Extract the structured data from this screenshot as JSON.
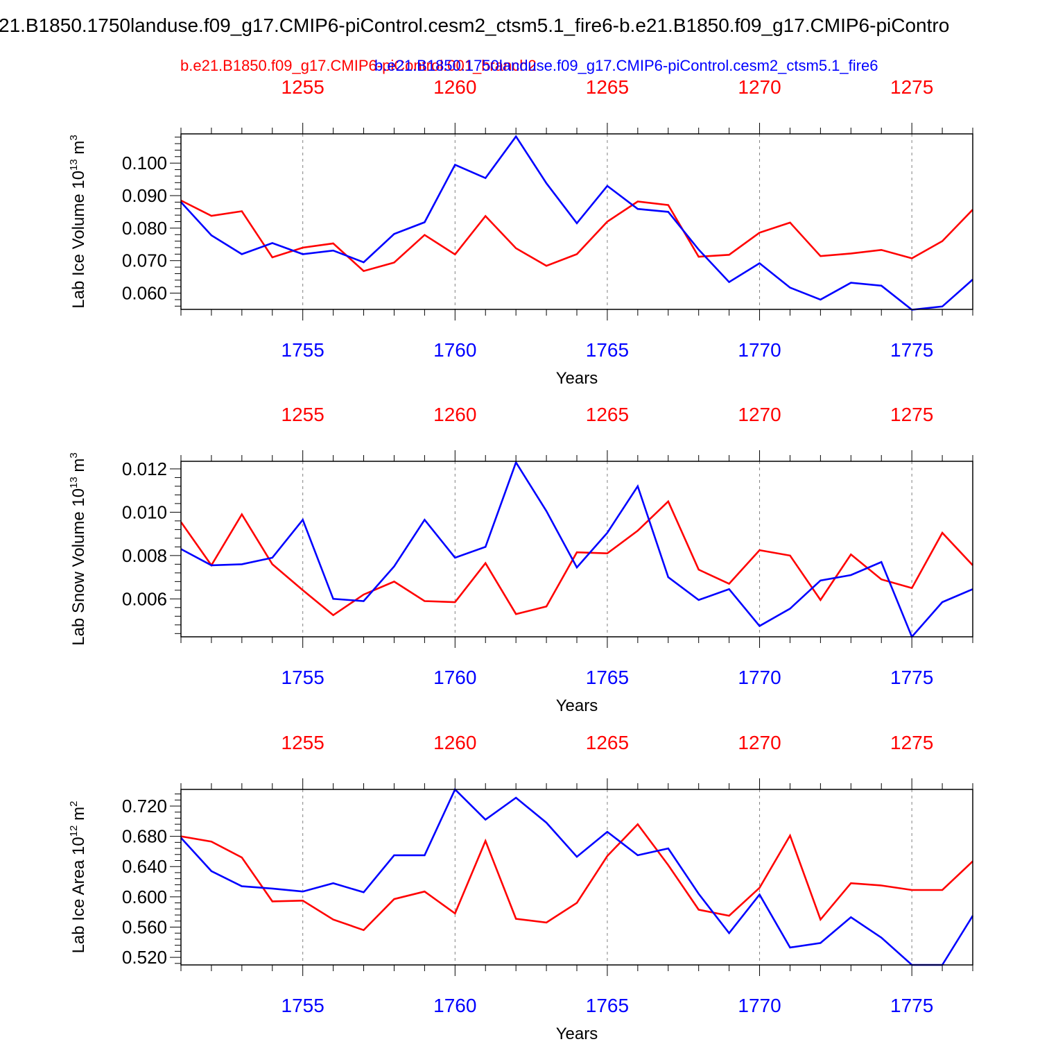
{
  "title": "21.B1850.1750landuse.f09_g17.CMIP6-piControl.cesm2_ctsm5.1_fire6-b.e21.B1850.f09_g17.CMIP6-piContro",
  "legend": {
    "red_label": "b.e21.B1850.f09_g17.CMIP6-piControl.001_branch2",
    "blue_label": "b.e21.B1850.1750landuse.f09_g17.CMIP6-piControl.cesm2_ctsm5.1_fire6"
  },
  "colors": {
    "red": "#ff0000",
    "blue": "#0000ff",
    "frame": "#000000",
    "grid": "#808080"
  },
  "chart_data": [
    {
      "type": "line",
      "ylabel": "Lab Ice Volume 10",
      "ylabel_exp": "13",
      "ylabel_unit": " m",
      "ylabel_unit_exp": "3",
      "xlabel": "Years",
      "ylim": [
        0.055,
        0.109
      ],
      "xlim": [
        1751,
        1777
      ],
      "yticks": [
        0.06,
        0.07,
        0.08,
        0.09,
        0.1
      ],
      "ytick_labels": [
        "0.060",
        "0.070",
        "0.080",
        "0.090",
        "0.100"
      ],
      "bottom_ticks": [
        1755,
        1760,
        1765,
        1770,
        1775
      ],
      "bottom_tick_labels": [
        "1755",
        "1760",
        "1765",
        "1770",
        "1775"
      ],
      "top_tick_labels": [
        "1255",
        "1260",
        "1265",
        "1270",
        "1275"
      ],
      "x": [
        1751,
        1752,
        1753,
        1754,
        1755,
        1756,
        1757,
        1758,
        1759,
        1760,
        1761,
        1762,
        1763,
        1764,
        1765,
        1766,
        1767,
        1768,
        1769,
        1770,
        1771,
        1772,
        1773,
        1774,
        1775,
        1776,
        1777
      ],
      "series": [
        {
          "color": "red",
          "values": [
            0.0885,
            0.0838,
            0.0852,
            0.071,
            0.074,
            0.0753,
            0.0668,
            0.0694,
            0.0779,
            0.0719,
            0.0837,
            0.0738,
            0.0684,
            0.072,
            0.082,
            0.0882,
            0.0871,
            0.0712,
            0.0718,
            0.0786,
            0.0817,
            0.0714,
            0.0722,
            0.0733,
            0.0707,
            0.076,
            0.0857
          ]
        },
        {
          "color": "blue",
          "values": [
            0.088,
            0.0778,
            0.072,
            0.0754,
            0.072,
            0.0731,
            0.0695,
            0.0782,
            0.0818,
            0.0995,
            0.0954,
            0.1082,
            0.0938,
            0.0815,
            0.093,
            0.0859,
            0.085,
            0.0734,
            0.0634,
            0.0692,
            0.0617,
            0.058,
            0.0632,
            0.0623,
            0.0549,
            0.0559,
            0.0642
          ]
        }
      ]
    },
    {
      "type": "line",
      "ylabel": "Lab Snow Volume 10",
      "ylabel_exp": "13",
      "ylabel_unit": " m",
      "ylabel_unit_exp": "3",
      "xlabel": "Years",
      "ylim": [
        0.00425,
        0.01235
      ],
      "xlim": [
        1751,
        1777
      ],
      "yticks": [
        0.006,
        0.008,
        0.01,
        0.012
      ],
      "ytick_labels": [
        "0.006",
        "0.008",
        "0.010",
        "0.012"
      ],
      "bottom_ticks": [
        1755,
        1760,
        1765,
        1770,
        1775
      ],
      "bottom_tick_labels": [
        "1755",
        "1760",
        "1765",
        "1770",
        "1775"
      ],
      "top_tick_labels": [
        "1255",
        "1260",
        "1265",
        "1270",
        "1275"
      ],
      "x": [
        1751,
        1752,
        1753,
        1754,
        1755,
        1756,
        1757,
        1758,
        1759,
        1760,
        1761,
        1762,
        1763,
        1764,
        1765,
        1766,
        1767,
        1768,
        1769,
        1770,
        1771,
        1772,
        1773,
        1774,
        1775,
        1776,
        1777
      ],
      "series": [
        {
          "color": "red",
          "values": [
            0.00955,
            0.00755,
            0.0099,
            0.0076,
            0.0064,
            0.00525,
            0.0062,
            0.0068,
            0.0059,
            0.00585,
            0.00765,
            0.0053,
            0.00565,
            0.00815,
            0.0081,
            0.00915,
            0.0105,
            0.00735,
            0.0067,
            0.00825,
            0.008,
            0.00595,
            0.00805,
            0.0069,
            0.0065,
            0.00905,
            0.00755
          ]
        },
        {
          "color": "blue",
          "values": [
            0.0083,
            0.00755,
            0.0076,
            0.0079,
            0.00965,
            0.006,
            0.0059,
            0.0075,
            0.00965,
            0.0079,
            0.0084,
            0.0123,
            0.01005,
            0.00745,
            0.00905,
            0.0112,
            0.007,
            0.00595,
            0.00645,
            0.00475,
            0.00555,
            0.00685,
            0.0071,
            0.0077,
            0.00425,
            0.00585,
            0.00645
          ]
        }
      ]
    },
    {
      "type": "line",
      "ylabel": "Lab Ice Area 10",
      "ylabel_exp": "12",
      "ylabel_unit": " m",
      "ylabel_unit_exp": "2",
      "xlabel": "Years",
      "ylim": [
        0.51,
        0.742
      ],
      "xlim": [
        1751,
        1777
      ],
      "yticks": [
        0.52,
        0.56,
        0.6,
        0.64,
        0.68,
        0.72
      ],
      "ytick_labels": [
        "0.520",
        "0.560",
        "0.600",
        "0.640",
        "0.680",
        "0.720"
      ],
      "bottom_ticks": [
        1755,
        1760,
        1765,
        1770,
        1775
      ],
      "bottom_tick_labels": [
        "1755",
        "1760",
        "1765",
        "1770",
        "1775"
      ],
      "top_tick_labels": [
        "1255",
        "1260",
        "1265",
        "1270",
        "1275"
      ],
      "x": [
        1751,
        1752,
        1753,
        1754,
        1755,
        1756,
        1757,
        1758,
        1759,
        1760,
        1761,
        1762,
        1763,
        1764,
        1765,
        1766,
        1767,
        1768,
        1769,
        1770,
        1771,
        1772,
        1773,
        1774,
        1775,
        1776,
        1777
      ],
      "series": [
        {
          "color": "red",
          "values": [
            0.68,
            0.673,
            0.652,
            0.594,
            0.595,
            0.57,
            0.556,
            0.597,
            0.607,
            0.578,
            0.674,
            0.571,
            0.566,
            0.592,
            0.654,
            0.696,
            0.642,
            0.583,
            0.575,
            0.612,
            0.681,
            0.57,
            0.618,
            0.615,
            0.609,
            0.609,
            0.647
          ]
        },
        {
          "color": "blue",
          "values": [
            0.678,
            0.634,
            0.614,
            0.611,
            0.607,
            0.618,
            0.606,
            0.655,
            0.655,
            0.742,
            0.702,
            0.731,
            0.698,
            0.653,
            0.686,
            0.655,
            0.664,
            0.604,
            0.552,
            0.603,
            0.533,
            0.539,
            0.573,
            0.546,
            0.51,
            0.51,
            0.575
          ]
        }
      ]
    }
  ]
}
